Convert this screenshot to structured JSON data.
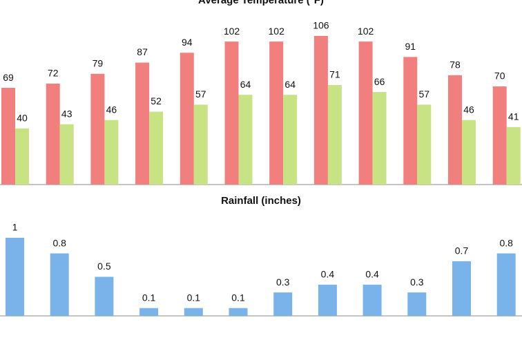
{
  "chart_data": [
    {
      "type": "bar",
      "title": "Average Temperature (°F)",
      "categories": [
        null,
        null,
        null,
        null,
        null,
        null,
        null,
        null,
        null,
        null,
        null,
        null
      ],
      "series": [
        {
          "color": "#f07f7e",
          "values": [
            69,
            72,
            79,
            87,
            94,
            102,
            102,
            106,
            102,
            91,
            78,
            70
          ]
        },
        {
          "color": "#c8e384",
          "values": [
            40,
            43,
            46,
            52,
            57,
            64,
            64,
            71,
            66,
            57,
            46,
            41
          ]
        }
      ]
    },
    {
      "type": "bar",
      "title": "Rainfall (inches)",
      "categories": [
        null,
        null,
        null,
        null,
        null,
        null,
        null,
        null,
        null,
        null,
        null,
        null
      ],
      "series": [
        {
          "color": "#7ab3ea",
          "values": [
            1,
            0.8,
            0.5,
            0.1,
            0.1,
            0.1,
            0.3,
            0.4,
            0.4,
            0.3,
            0.7,
            0.8
          ]
        }
      ]
    }
  ]
}
